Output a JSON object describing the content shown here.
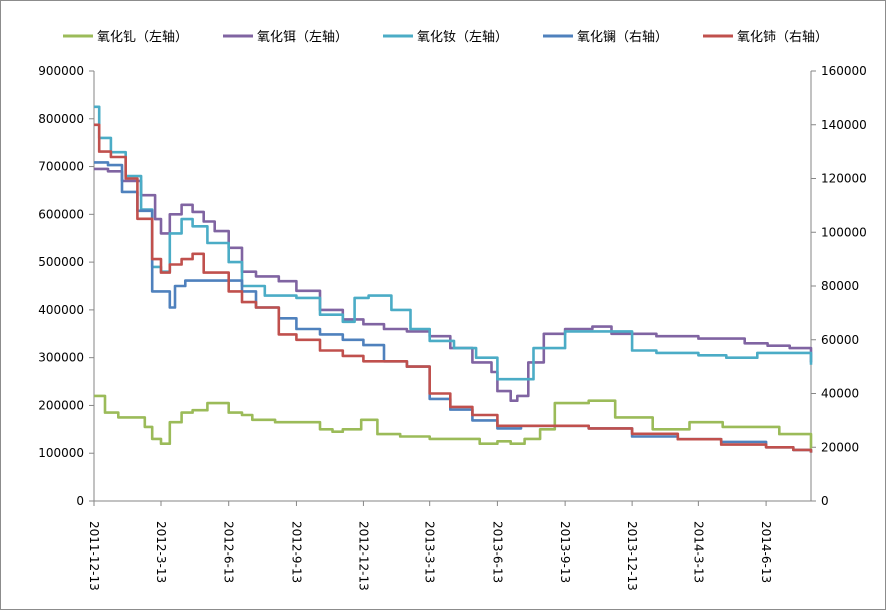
{
  "chart_data": {
    "type": "line",
    "title": "",
    "xlabel": "",
    "ylabel_left": "",
    "ylabel_right": "",
    "ylim_left": [
      0,
      900000
    ],
    "ylim_right": [
      0,
      160000
    ],
    "yticks_left": [
      "0",
      "100000",
      "200000",
      "300000",
      "400000",
      "500000",
      "600000",
      "700000",
      "800000",
      "900000"
    ],
    "yticks_right": [
      "0",
      "20000",
      "40000",
      "60000",
      "80000",
      "100000",
      "120000",
      "140000",
      "160000"
    ],
    "xticks": [
      "2011-12-13",
      "2012-3-13",
      "2012-6-13",
      "2012-9-13",
      "2012-12-13",
      "2013-3-13",
      "2013-6-13",
      "2013-9-13",
      "2013-12-13",
      "2014-3-13",
      "2014-6-13"
    ],
    "xlim": [
      "2011-12-13",
      "2014-8-13"
    ],
    "legend": "top",
    "series": [
      {
        "name": "氧化钆（左轴）",
        "axis": "left",
        "color": "#9bbb59",
        "x": [
          "2011-12-13",
          "2011-12-28",
          "2012-1-15",
          "2012-2-20",
          "2012-3-1",
          "2012-3-13",
          "2012-3-25",
          "2012-4-10",
          "2012-4-25",
          "2012-5-15",
          "2012-6-13",
          "2012-7-1",
          "2012-7-15",
          "2012-8-15",
          "2012-9-13",
          "2012-10-15",
          "2012-11-1",
          "2012-11-15",
          "2012-12-10",
          "2013-1-1",
          "2013-2-1",
          "2013-3-13",
          "2013-4-15",
          "2013-5-20",
          "2013-6-13",
          "2013-7-1",
          "2013-7-20",
          "2013-8-10",
          "2013-8-30",
          "2013-10-15",
          "2013-11-20",
          "2014-1-10",
          "2014-3-1",
          "2014-4-15",
          "2014-5-25",
          "2014-7-1",
          "2014-8-13"
        ],
        "values": [
          220000,
          185000,
          175000,
          155000,
          130000,
          120000,
          165000,
          185000,
          190000,
          205000,
          185000,
          180000,
          170000,
          165000,
          165000,
          150000,
          145000,
          150000,
          170000,
          140000,
          135000,
          130000,
          130000,
          120000,
          125000,
          120000,
          130000,
          150000,
          205000,
          210000,
          175000,
          150000,
          165000,
          155000,
          155000,
          140000,
          110000
        ]
      },
      {
        "name": "氧化铒（左轴）",
        "axis": "left",
        "color": "#8064a2",
        "x": [
          "2011-12-13",
          "2012-1-1",
          "2012-1-20",
          "2012-2-15",
          "2012-3-5",
          "2012-3-13",
          "2012-3-25",
          "2012-4-10",
          "2012-4-25",
          "2012-5-10",
          "2012-5-25",
          "2012-6-13",
          "2012-7-1",
          "2012-7-20",
          "2012-8-20",
          "2012-9-13",
          "2012-10-15",
          "2012-11-15",
          "2012-12-13",
          "2013-1-10",
          "2013-2-10",
          "2013-3-13",
          "2013-4-10",
          "2013-5-10",
          "2013-6-5",
          "2013-6-13",
          "2013-7-1",
          "2013-7-10",
          "2013-7-25",
          "2013-8-15",
          "2013-9-13",
          "2013-10-20",
          "2013-11-15",
          "2014-1-15",
          "2014-3-13",
          "2014-5-15",
          "2014-6-15",
          "2014-7-15",
          "2014-8-13"
        ],
        "values": [
          695000,
          690000,
          670000,
          640000,
          590000,
          560000,
          600000,
          620000,
          605000,
          585000,
          565000,
          530000,
          480000,
          470000,
          460000,
          440000,
          400000,
          380000,
          370000,
          360000,
          355000,
          345000,
          320000,
          290000,
          270000,
          230000,
          210000,
          220000,
          290000,
          350000,
          360000,
          365000,
          350000,
          345000,
          340000,
          330000,
          325000,
          320000,
          290000
        ]
      },
      {
        "name": "氧化钕（左轴）",
        "axis": "left",
        "color": "#4bacc6",
        "x": [
          "2011-12-13",
          "2011-12-20",
          "2012-1-5",
          "2012-1-25",
          "2012-2-15",
          "2012-3-1",
          "2012-3-13",
          "2012-3-25",
          "2012-4-10",
          "2012-4-25",
          "2012-5-15",
          "2012-6-13",
          "2012-7-1",
          "2012-8-1",
          "2012-9-13",
          "2012-10-15",
          "2012-11-15",
          "2012-12-1",
          "2012-12-20",
          "2013-1-20",
          "2013-2-15",
          "2013-3-13",
          "2013-4-15",
          "2013-5-15",
          "2013-6-13",
          "2013-7-10",
          "2013-8-1",
          "2013-9-13",
          "2013-10-20",
          "2013-12-13",
          "2014-1-15",
          "2014-3-13",
          "2014-4-20",
          "2014-6-1",
          "2014-7-1",
          "2014-8-13"
        ],
        "values": [
          825000,
          760000,
          730000,
          680000,
          610000,
          490000,
          480000,
          560000,
          590000,
          575000,
          540000,
          500000,
          450000,
          430000,
          425000,
          390000,
          375000,
          425000,
          430000,
          400000,
          360000,
          335000,
          320000,
          300000,
          255000,
          255000,
          320000,
          355000,
          355000,
          315000,
          310000,
          305000,
          300000,
          310000,
          310000,
          285000
        ]
      },
      {
        "name": "氧化镧（右轴）",
        "axis": "right",
        "color": "#4f81bd",
        "x": [
          "2011-12-13",
          "2012-1-1",
          "2012-1-20",
          "2012-2-10",
          "2012-3-1",
          "2012-3-13",
          "2012-3-25",
          "2012-4-1",
          "2012-4-15",
          "2012-5-15",
          "2012-6-13",
          "2012-7-1",
          "2012-7-20",
          "2012-8-20",
          "2012-9-13",
          "2012-10-15",
          "2012-11-15",
          "2012-12-13",
          "2013-1-10",
          "2013-2-10",
          "2013-3-13",
          "2013-4-10",
          "2013-5-10",
          "2013-6-13",
          "2013-7-15",
          "2013-8-15",
          "2013-9-13",
          "2013-10-15",
          "2013-12-13",
          "2014-2-13",
          "2014-4-13",
          "2014-6-13",
          "2014-7-20",
          "2014-8-13"
        ],
        "values": [
          126000,
          125000,
          115000,
          108000,
          78000,
          78000,
          72000,
          80000,
          82000,
          82000,
          82000,
          78000,
          72000,
          68000,
          64000,
          62000,
          60000,
          58000,
          52000,
          50000,
          38000,
          34000,
          30000,
          27000,
          28000,
          28000,
          28000,
          27000,
          24000,
          23000,
          22000,
          20000,
          19000,
          18000
        ]
      },
      {
        "name": "氧化铈（右轴）",
        "axis": "right",
        "color": "#c0504d",
        "x": [
          "2011-12-13",
          "2011-12-20",
          "2012-1-5",
          "2012-1-25",
          "2012-2-10",
          "2012-3-1",
          "2012-3-13",
          "2012-3-25",
          "2012-4-10",
          "2012-4-25",
          "2012-5-10",
          "2012-6-13",
          "2012-7-1",
          "2012-7-20",
          "2012-8-20",
          "2012-9-13",
          "2012-10-15",
          "2012-11-15",
          "2012-12-13",
          "2013-1-10",
          "2013-2-10",
          "2013-3-13",
          "2013-4-10",
          "2013-5-10",
          "2013-6-13",
          "2013-7-15",
          "2013-8-15",
          "2013-9-13",
          "2013-10-15",
          "2013-12-13",
          "2014-2-13",
          "2014-4-13",
          "2014-6-13",
          "2014-7-20",
          "2014-8-13"
        ],
        "values": [
          140000,
          130000,
          128000,
          120000,
          105000,
          90000,
          85000,
          88000,
          90000,
          92000,
          85000,
          78000,
          74000,
          72000,
          62000,
          60000,
          56000,
          54000,
          52000,
          52000,
          50000,
          40000,
          35000,
          32000,
          28000,
          28000,
          28000,
          28000,
          27000,
          25000,
          23000,
          21000,
          20000,
          19000,
          18000
        ]
      }
    ]
  }
}
